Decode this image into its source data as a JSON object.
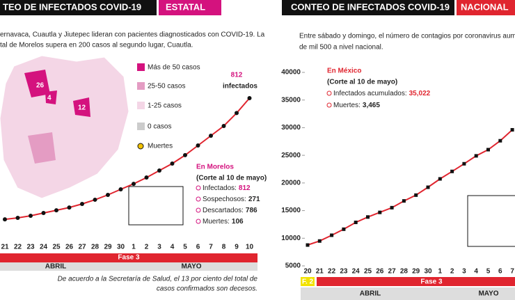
{
  "left": {
    "header": "TEO DE INFECTADOS COVID-19",
    "tag": "ESTATAL",
    "intro": [
      "ernavaca, Cuautla y Jiutepec lideran con pacientes diagnosticados con COVID-19. La",
      "tal de Morelos supera en 200 casos al segundo lugar, Cuautla."
    ],
    "map_labels": [
      "26",
      "4",
      "12"
    ],
    "legend": [
      "Más de 50 casos",
      "25-50 casos",
      "1-25 casos",
      "0 casos",
      "Muertes"
    ],
    "box": {
      "title": "En Morelos",
      "cut": "(Corte al 10 de mayo)",
      "items": [
        {
          "label": "Infectados:",
          "value": "812"
        },
        {
          "label": "Sospechosos:",
          "value": "271"
        },
        {
          "label": "Descartados:",
          "value": "786"
        },
        {
          "label": "Muertes:",
          "value": "106"
        }
      ]
    },
    "phase": "Fase 3",
    "months": [
      "ABRIL",
      "MAYO"
    ],
    "footnote": [
      "De acuerdo a la Secretaría de Salud, el 13 por ciento del total de",
      "casos confirmados son decesos."
    ]
  },
  "right": {
    "header": "CONTEO DE INFECTADOS COVID-19",
    "tag": "NACIONAL",
    "intro": [
      "Entre sábado y domingo, el número de contagios por coronavirus aumentó en",
      "de mil 500 a nivel nacional."
    ],
    "box": {
      "title": "En México",
      "cut": "(Corte al 10 de mayo)",
      "items": [
        {
          "label": "Infectados acumulados:",
          "value": "35,022"
        },
        {
          "label": "Muertes:",
          "value": "3,465"
        }
      ]
    },
    "phases": [
      "F. 2",
      "Fase 3"
    ],
    "months": [
      "ABRIL",
      "MAYO"
    ]
  },
  "chart_data": [
    {
      "type": "line",
      "color": "#e0252f",
      "annotations": [
        "812",
        "infectados"
      ],
      "categories": [
        "21",
        "22",
        "23",
        "24",
        "25",
        "26",
        "27",
        "28",
        "29",
        "30",
        "1",
        "2",
        "3",
        "4",
        "5",
        "6",
        "7",
        "8",
        "9",
        "10"
      ],
      "values": [
        64,
        73,
        86,
        103,
        120,
        137,
        159,
        185,
        215,
        249,
        283,
        322,
        365,
        408,
        460,
        520,
        580,
        640,
        720,
        812
      ]
    },
    {
      "type": "line",
      "color": "#e0252f",
      "categories": [
        "20",
        "21",
        "22",
        "23",
        "24",
        "25",
        "26",
        "27",
        "28",
        "29",
        "30",
        "1",
        "2",
        "3",
        "4",
        "5",
        "6",
        "7"
      ],
      "values": [
        8772,
        9501,
        10544,
        11633,
        12872,
        13842,
        14677,
        15529,
        16752,
        17799,
        19224,
        20739,
        22088,
        23471,
        24905,
        26025,
        27634,
        29616
      ],
      "ylim": [
        5000,
        40000
      ],
      "yticks": [
        5000,
        10000,
        15000,
        20000,
        25000,
        30000,
        35000,
        40000
      ]
    }
  ]
}
